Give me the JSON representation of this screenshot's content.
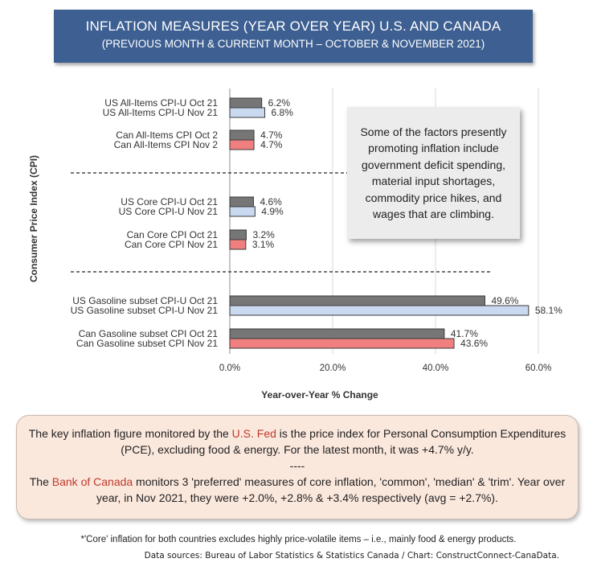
{
  "title": {
    "main": "INFLATION MEASURES (YEAR OVER YEAR) U.S. AND CANADA",
    "sub": "(PREVIOUS MONTH & CURRENT MONTH – OCTOBER & NOVEMBER 2021)"
  },
  "callout": "Some of the factors presently promoting inflation include government deficit spending, material input shortages, commodity price hikes, and wages that are climbing.",
  "info": {
    "p1_a": "The key inflation figure monitored by the ",
    "p1_red": "U.S. Fed",
    "p1_b": " is the price index for Personal Consumption Expenditures (PCE), excluding food & energy. For the latest month, it was +4.7% y/y.",
    "sep": "----",
    "p2_a": "The ",
    "p2_red": "Bank of Canada",
    "p2_b": " monitors 3 'preferred' measures of core inflation, 'common', 'median' & 'trim'. Year over year, in Nov 2021, they were +2.0%, +2.8% & +3.4% respectively (avg = +2.7%)."
  },
  "footnote": "*'Core' inflation for both countries excludes highly price-volatile items – i.e., mainly food & energy products.",
  "sources": "Data sources: Bureau of Labor Statistics & Statistics Canada / Chart: ConstructConnect-CanaData.",
  "colors": {
    "us_oct": "#767676",
    "us_nov": "#c9d9f0",
    "can_oct": "#767676",
    "can_nov": "#f08080",
    "title_bg": "#3d5f91"
  },
  "chart_data": {
    "type": "bar",
    "orientation": "horizontal",
    "xlabel": "Year-over-Year % Change",
    "ylabel": "Consumer Price Index (CPI)",
    "xlim": [
      0,
      60
    ],
    "xticks": [
      "0.0%",
      "20.0%",
      "40.0%",
      "60.0%"
    ],
    "grid": "vertical",
    "bars": [
      {
        "label": "US All-Items CPI-U Oct 21",
        "value": 6.2,
        "value_label": "6.2%",
        "group": 0,
        "color": "us_oct"
      },
      {
        "label": "US All-Items CPI-U Nov 21",
        "value": 6.8,
        "value_label": "6.8%",
        "group": 0,
        "color": "us_nov"
      },
      {
        "label": "Can All-Items CPI Oct 2",
        "value": 4.7,
        "value_label": "4.7%",
        "group": 1,
        "color": "can_oct"
      },
      {
        "label": "Can All-Items CPI Nov 2",
        "value": 4.7,
        "value_label": "4.7%",
        "group": 1,
        "color": "can_nov"
      },
      {
        "label": "US Core CPI-U Oct 21",
        "value": 4.6,
        "value_label": "4.6%",
        "group": 2,
        "color": "us_oct"
      },
      {
        "label": "US Core CPI-U Nov 21",
        "value": 4.9,
        "value_label": "4.9%",
        "group": 2,
        "color": "us_nov"
      },
      {
        "label": "Can Core CPI Oct 21",
        "value": 3.2,
        "value_label": "3.2%",
        "group": 3,
        "color": "can_oct"
      },
      {
        "label": "Can Core CPI Nov 21",
        "value": 3.1,
        "value_label": "3.1%",
        "group": 3,
        "color": "can_nov"
      },
      {
        "label": "US Gasoline subset CPI-U Oct 21",
        "value": 49.6,
        "value_label": "49.6%",
        "group": 4,
        "color": "us_oct"
      },
      {
        "label": "US Gasoline subset CPI-U Nov 21",
        "value": 58.1,
        "value_label": "58.1%",
        "group": 4,
        "color": "us_nov"
      },
      {
        "label": "Can Gasoline subset CPI Oct 21",
        "value": 41.7,
        "value_label": "41.7%",
        "group": 5,
        "color": "can_oct"
      },
      {
        "label": "Can Gasoline subset CPI Nov 21",
        "value": 43.6,
        "value_label": "43.6%",
        "group": 5,
        "color": "can_nov"
      }
    ]
  }
}
